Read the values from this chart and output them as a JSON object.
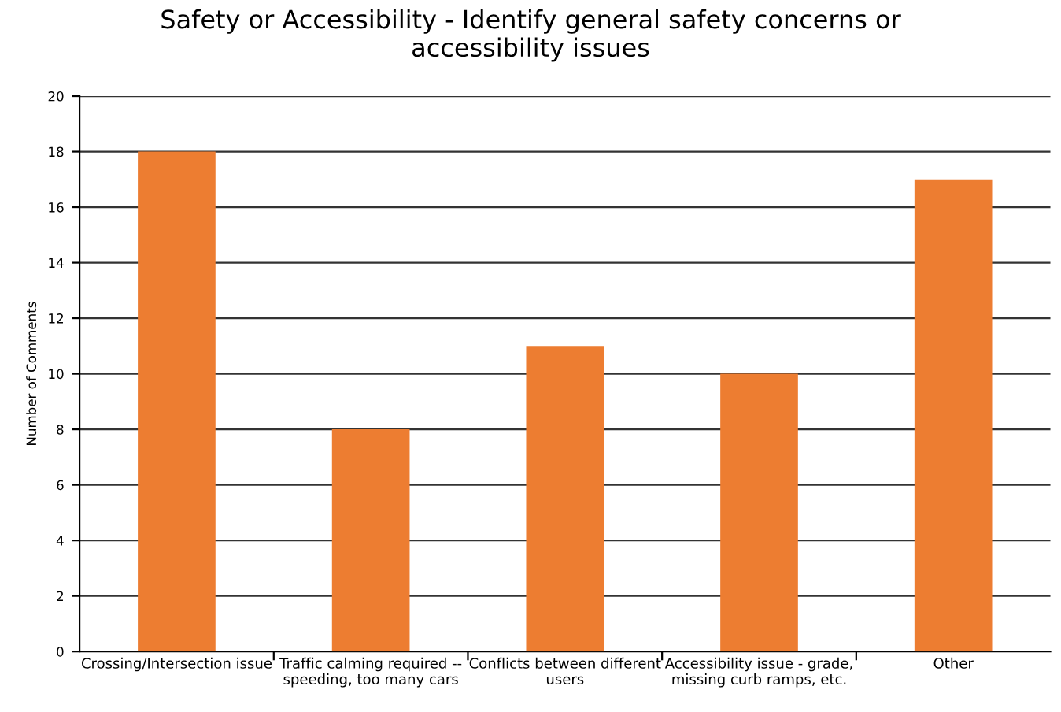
{
  "chart_data": {
    "type": "bar",
    "title": "Safety or Accessibility - Identify general safety concerns or accessibility issues",
    "ylabel": "Number of Comments",
    "categories": [
      "Crossing/Intersection issue",
      "Traffic calming required -- speeding, too many cars",
      "Conflicts between different users",
      "Accessibility issue - grade, missing curb ramps, etc.",
      "Other"
    ],
    "values": [
      18,
      8,
      11,
      10,
      17
    ],
    "color": "#ed7d31",
    "ylim": [
      0,
      20
    ],
    "yticks": [
      0,
      2,
      4,
      6,
      8,
      10,
      12,
      14,
      16,
      18,
      20
    ],
    "grid": "y",
    "legend": false
  }
}
